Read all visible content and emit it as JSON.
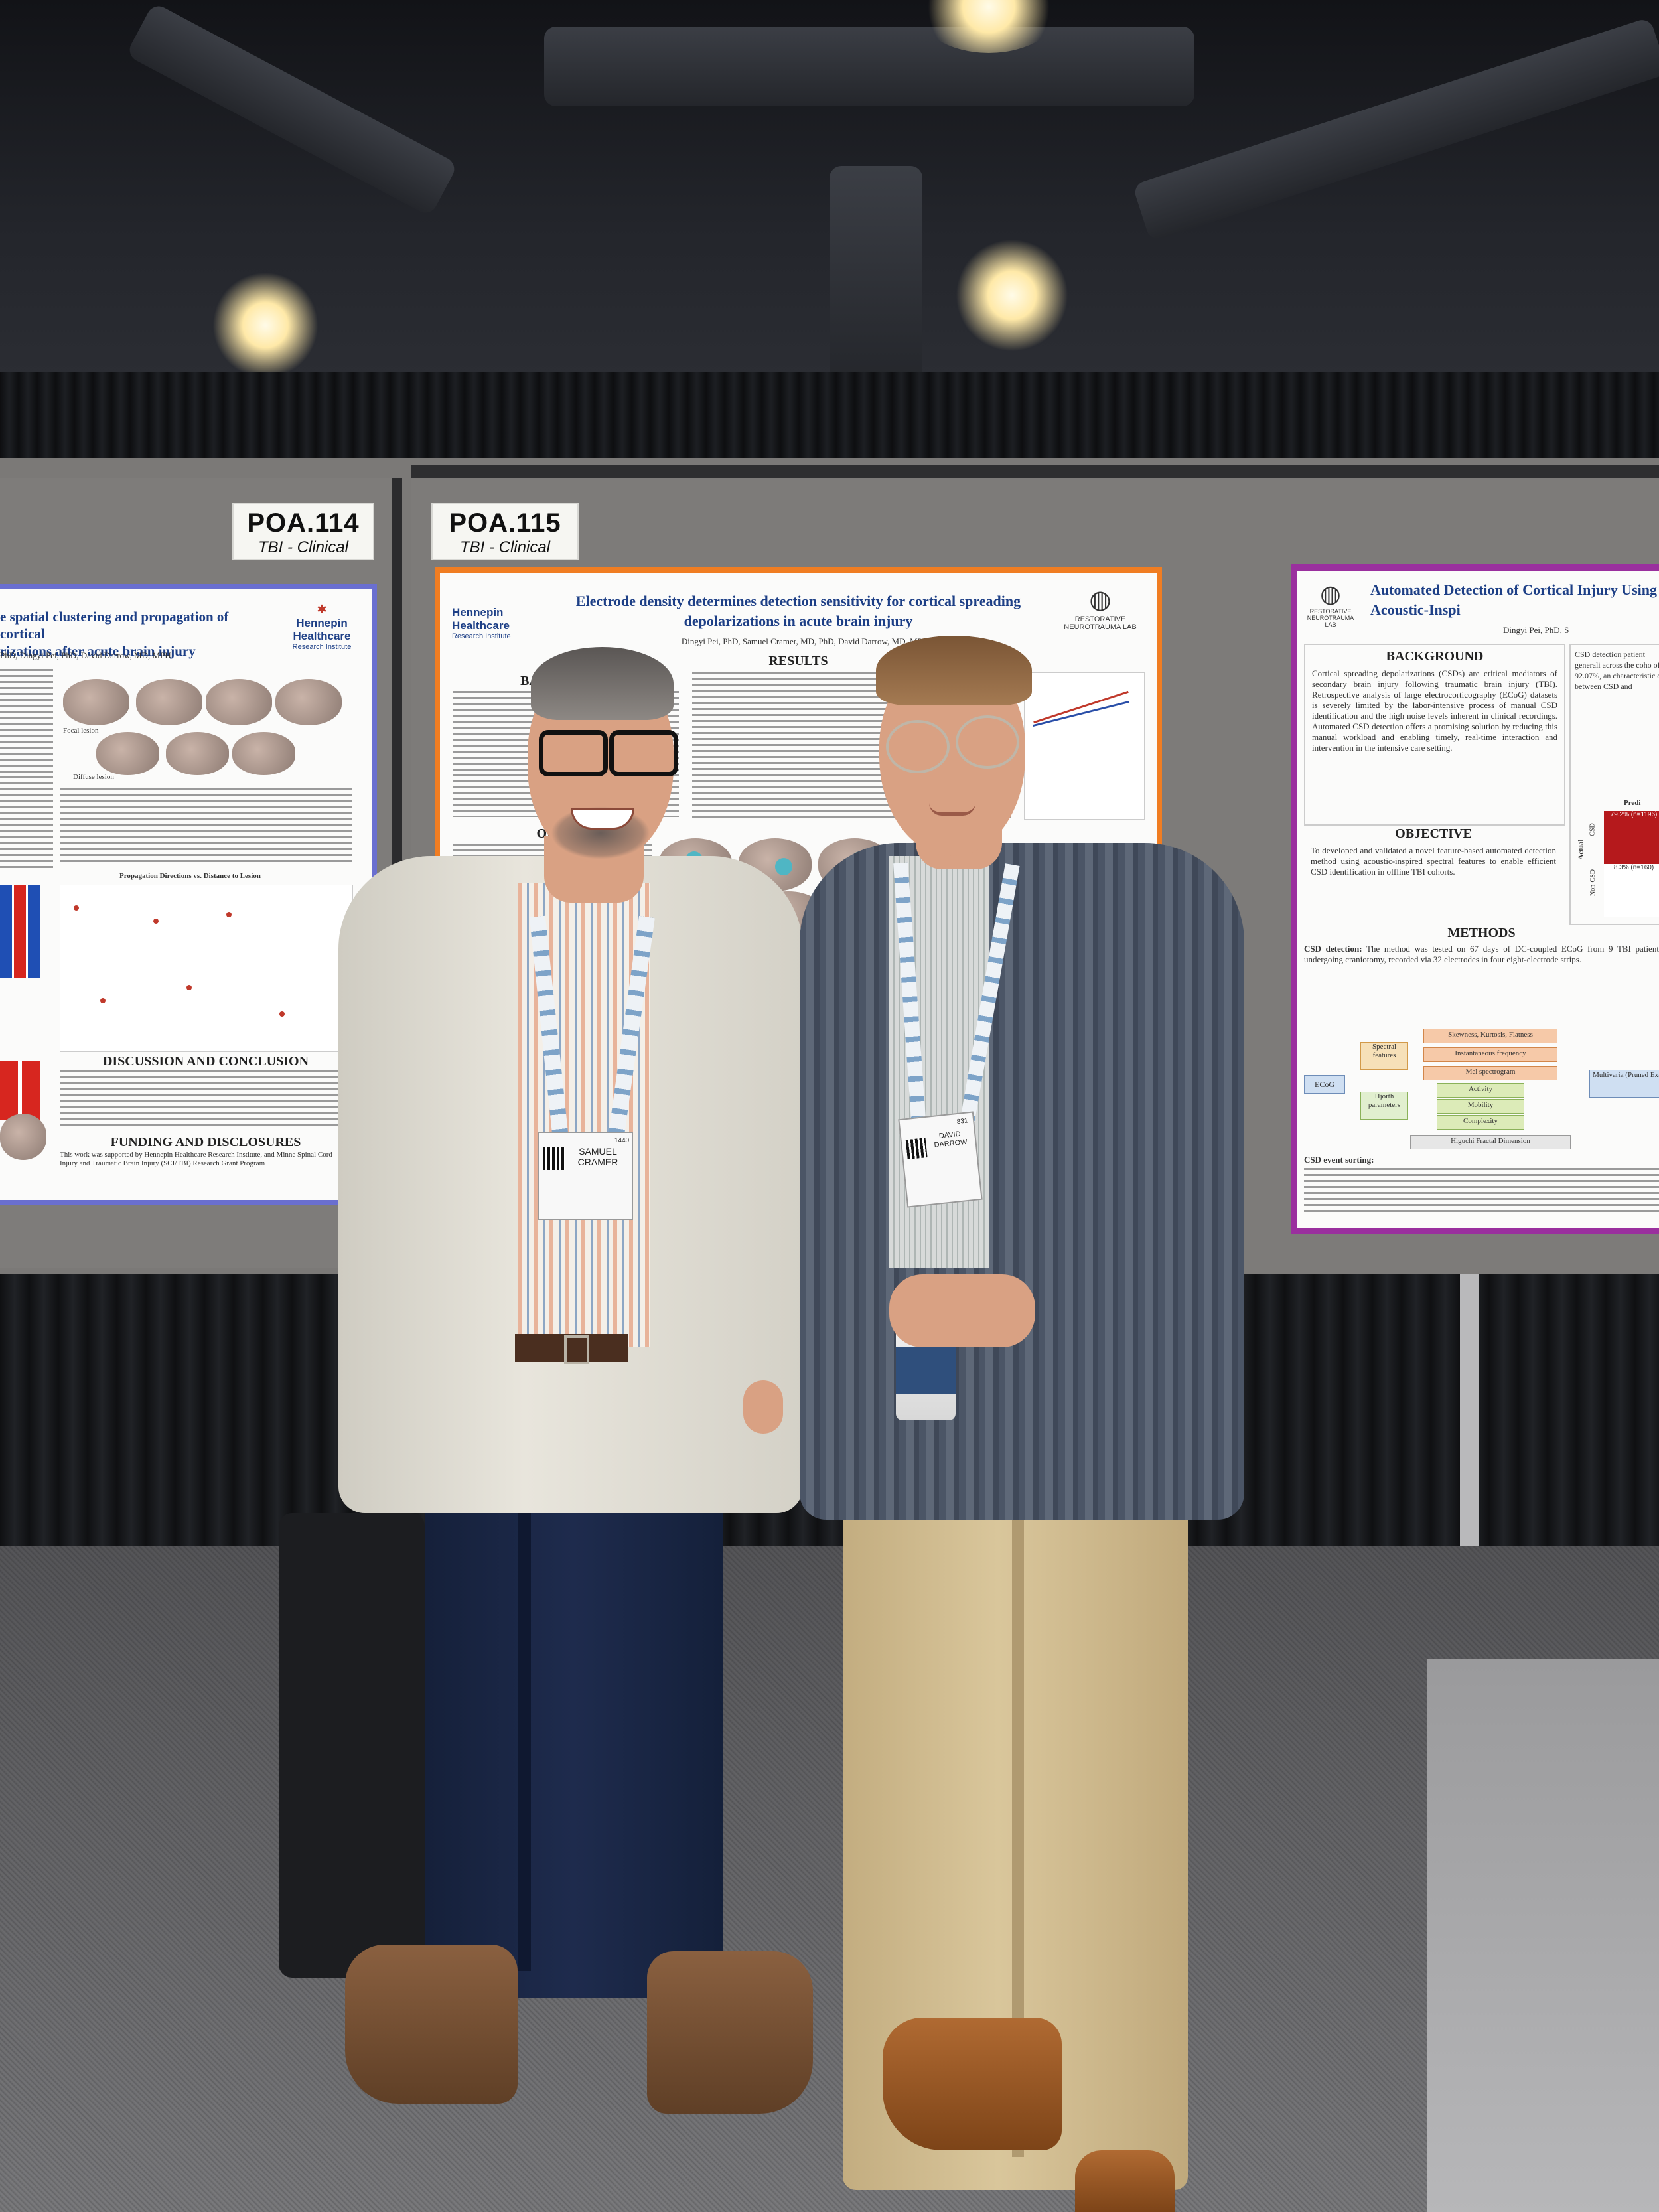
{
  "signs": [
    {
      "code": "POA.114",
      "category": "TBI - Clinical"
    },
    {
      "code": "POA.115",
      "category": "TBI - Clinical"
    }
  ],
  "poster_left": {
    "title": "e spatial clustering and propagation of cortical\nrizations after acute brain injury",
    "authors": "PhD, Dingyi Pei, PhD, David Darrow, MD, MPH",
    "logo": "Hennepin Healthcare",
    "logo_sub": "Research Institute",
    "chart_heading": "Propagation Directions vs. Distance to Lesion",
    "section_discussion": "DISCUSSION AND CONCLUSION",
    "section_funding": "FUNDING AND DISCLOSURES",
    "funding_text": "This work was supported by Hennepin Healthcare Research Institute, and Minne Spinal Cord Injury and Traumatic Brain Injury (SCI/TBI) Research Grant Program",
    "label_focal": "Focal lesion",
    "label_diffuse": "Diffuse lesion"
  },
  "poster_mid": {
    "logo": "Hennepin Healthcare",
    "logo_sub": "Research Institute",
    "title": "Electrode density determines detection sensitivity for cortical spreading depolarizations in acute brain injury",
    "authors": "Dingyi Pei, PhD, Samuel Cramer, MD, PhD, David Darrow, MD, MPH",
    "section_results": "RESULTS",
    "section_background": "BACKGR",
    "section_objective": "OBJ",
    "lab_logo": "RESTORATIVE NEUROTRAUMA LAB"
  },
  "poster_right": {
    "title": "Automated Detection of Cortical Injury Using Acoustic-Inspi",
    "authors": "Dingyi Pei, PhD, S",
    "lab_logo": "RESTORATIVE NEUROTRAUMA LAB",
    "section_background": "BACKGROUND",
    "background_text": "Cortical spreading depolarizations (CSDs) are critical mediators of secondary brain injury following traumatic brain injury (TBI). Retrospective analysis of large electrocorticography (ECoG) datasets is severely limited by the labor-intensive process of manual CSD identification and the high noise levels inherent in clinical recordings. Automated CSD detection offers a promising solution by reducing this manual workload and enabling timely, real-time interaction and intervention in the intensive care setting.",
    "section_objective": "OBJECTIVE",
    "objective_text": "To developed and validated a novel feature-based automated detection method using acoustic-inspired spectral features to enable efficient CSD identification in offline TBI cohorts.",
    "section_methods": "METHODS",
    "methods_label": "CSD detection:",
    "methods_text": "The method was tested on 67 days of DC-coupled ECoG from 9 TBI patients undergoing craniotomy, recorded via 32 electrodes in four eight-electrode strips.",
    "flow": {
      "ecog": "ECoG",
      "spectral": "Spectral features",
      "hjorth": "Hjorth parameters",
      "skewness": "Skewness, Kurtosis, Flatness",
      "inst_freq": "Instantaneous frequency",
      "mel": "Mel spectrogram",
      "activity": "Activity",
      "mobility": "Mobility",
      "complexity": "Complexity",
      "higuchi": "Higuchi Fractal Dimension",
      "multivar": "Multivaria (Pruned Exact"
    },
    "event_label": "CSD event sorting:",
    "matrix": {
      "cell_top": "79.2% (n=1196)",
      "cell_bottom": "8.3% (n=160)",
      "row_csd": "CSD",
      "row_noncsd": "Non-CSD",
      "axis": "Actual",
      "pred": "Predi"
    },
    "side_text": "CSD detection patient generali across the coho of 92.07%, an characteristic cu between CSD and"
  },
  "people": {
    "left_badge": {
      "name": "SAMUEL\nCRAMER",
      "number": "1440"
    },
    "right_badge": {
      "name": "DAVID\nDARROW",
      "number": "831"
    }
  }
}
